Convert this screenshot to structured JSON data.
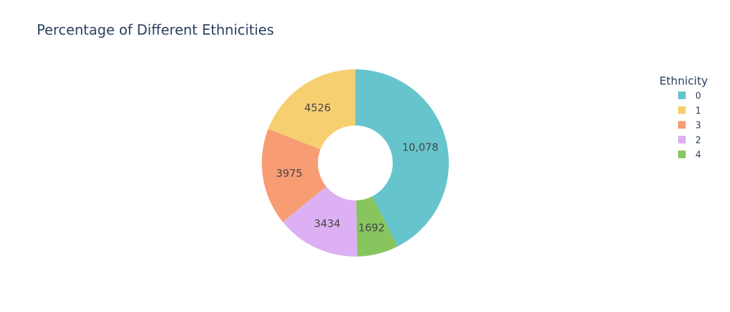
{
  "chart_data": {
    "type": "pie",
    "hole": true,
    "title": "Percentage of Different Ethnicities",
    "legend_title": "Ethnicity",
    "legend_position": "right",
    "slices": [
      {
        "label": "0",
        "value": 10078,
        "text": "10,078",
        "color": "#66c5cc"
      },
      {
        "label": "4",
        "value": 1692,
        "text": "1692",
        "color": "#87c55f"
      },
      {
        "label": "2",
        "value": 3434,
        "text": "3434",
        "color": "#dcb0f2"
      },
      {
        "label": "3",
        "value": 3975,
        "text": "3975",
        "color": "#f89c74"
      },
      {
        "label": "1",
        "value": 4526,
        "text": "4526",
        "color": "#f6cf71"
      }
    ],
    "legend_order": [
      "0",
      "1",
      "3",
      "2",
      "4"
    ]
  }
}
